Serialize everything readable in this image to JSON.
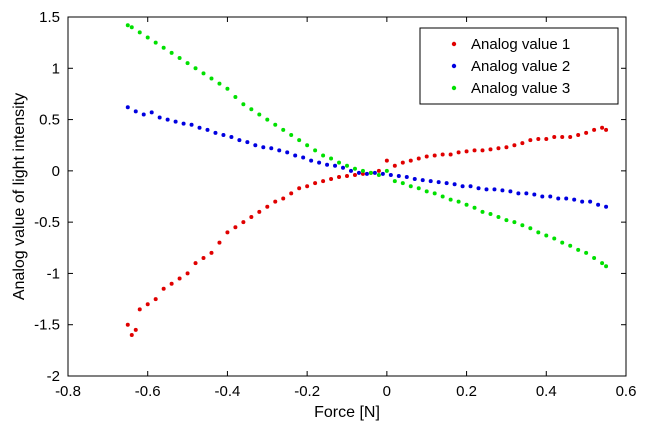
{
  "chart_data": {
    "type": "scatter",
    "title": "",
    "xlabel": "Force [N]",
    "ylabel": "Analog value of light intensity",
    "xlim": [
      -0.8,
      0.6
    ],
    "ylim": [
      -2,
      1.5
    ],
    "xticks": [
      -0.8,
      -0.6,
      -0.4,
      -0.2,
      0,
      0.2,
      0.4,
      0.6
    ],
    "yticks": [
      -2,
      -1.5,
      -1,
      -0.5,
      0,
      0.5,
      1,
      1.5
    ],
    "xtick_labels": [
      "-0.8",
      "-0.6",
      "-0.4",
      "-0.2",
      "0",
      "0.2",
      "0.4",
      "0.6"
    ],
    "ytick_labels": [
      "-2",
      "-1.5",
      "-1",
      "-0.5",
      "0",
      "0.5",
      "1",
      "1.5"
    ],
    "grid": false,
    "legend_position": "top-right",
    "series": [
      {
        "name": "Analog value 1",
        "color": "#e00000",
        "x": [
          -0.65,
          -0.64,
          -0.63,
          -0.62,
          -0.6,
          -0.58,
          -0.56,
          -0.54,
          -0.52,
          -0.5,
          -0.48,
          -0.46,
          -0.44,
          -0.42,
          -0.4,
          -0.38,
          -0.36,
          -0.34,
          -0.32,
          -0.3,
          -0.28,
          -0.26,
          -0.24,
          -0.22,
          -0.2,
          -0.18,
          -0.16,
          -0.14,
          -0.12,
          -0.1,
          -0.08,
          -0.06,
          -0.04,
          -0.02,
          0,
          0.02,
          0.04,
          0.06,
          0.08,
          0.1,
          0.12,
          0.14,
          0.16,
          0.18,
          0.2,
          0.22,
          0.24,
          0.26,
          0.28,
          0.3,
          0.32,
          0.34,
          0.36,
          0.38,
          0.4,
          0.42,
          0.44,
          0.46,
          0.48,
          0.5,
          0.52,
          0.54,
          0.55
        ],
        "y": [
          -1.5,
          -1.6,
          -1.55,
          -1.35,
          -1.3,
          -1.25,
          -1.15,
          -1.1,
          -1.05,
          -1.0,
          -0.9,
          -0.85,
          -0.8,
          -0.7,
          -0.6,
          -0.55,
          -0.5,
          -0.45,
          -0.4,
          -0.35,
          -0.3,
          -0.27,
          -0.22,
          -0.17,
          -0.15,
          -0.12,
          -0.1,
          -0.08,
          -0.06,
          -0.05,
          -0.04,
          -0.03,
          -0.02,
          0.0,
          0.1,
          0.05,
          0.08,
          0.1,
          0.12,
          0.14,
          0.15,
          0.16,
          0.16,
          0.18,
          0.19,
          0.2,
          0.2,
          0.21,
          0.22,
          0.23,
          0.25,
          0.27,
          0.3,
          0.31,
          0.31,
          0.33,
          0.33,
          0.33,
          0.35,
          0.37,
          0.4,
          0.42,
          0.4
        ]
      },
      {
        "name": "Analog value 2",
        "color": "#0000e0",
        "x": [
          -0.65,
          -0.63,
          -0.61,
          -0.59,
          -0.57,
          -0.55,
          -0.53,
          -0.51,
          -0.49,
          -0.47,
          -0.45,
          -0.43,
          -0.41,
          -0.39,
          -0.37,
          -0.35,
          -0.33,
          -0.31,
          -0.29,
          -0.27,
          -0.25,
          -0.23,
          -0.21,
          -0.19,
          -0.17,
          -0.15,
          -0.13,
          -0.11,
          -0.09,
          -0.07,
          -0.05,
          -0.03,
          -0.01,
          0.01,
          0.03,
          0.05,
          0.07,
          0.09,
          0.11,
          0.13,
          0.15,
          0.17,
          0.19,
          0.21,
          0.23,
          0.25,
          0.27,
          0.29,
          0.31,
          0.33,
          0.35,
          0.37,
          0.39,
          0.41,
          0.43,
          0.45,
          0.47,
          0.49,
          0.51,
          0.53,
          0.55
        ],
        "y": [
          0.62,
          0.58,
          0.55,
          0.57,
          0.52,
          0.5,
          0.48,
          0.46,
          0.45,
          0.42,
          0.4,
          0.37,
          0.35,
          0.33,
          0.3,
          0.28,
          0.25,
          0.23,
          0.22,
          0.2,
          0.18,
          0.15,
          0.13,
          0.1,
          0.08,
          0.06,
          0.05,
          0.03,
          0.0,
          -0.02,
          -0.03,
          -0.02,
          -0.03,
          -0.04,
          -0.05,
          -0.06,
          -0.08,
          -0.09,
          -0.1,
          -0.11,
          -0.12,
          -0.13,
          -0.15,
          -0.15,
          -0.17,
          -0.18,
          -0.18,
          -0.19,
          -0.2,
          -0.22,
          -0.22,
          -0.23,
          -0.25,
          -0.25,
          -0.27,
          -0.27,
          -0.28,
          -0.3,
          -0.3,
          -0.33,
          -0.35
        ]
      },
      {
        "name": "Analog value 3",
        "color": "#00e000",
        "x": [
          -0.65,
          -0.64,
          -0.62,
          -0.6,
          -0.58,
          -0.56,
          -0.54,
          -0.52,
          -0.5,
          -0.48,
          -0.46,
          -0.44,
          -0.42,
          -0.4,
          -0.38,
          -0.36,
          -0.34,
          -0.32,
          -0.3,
          -0.28,
          -0.26,
          -0.24,
          -0.22,
          -0.2,
          -0.18,
          -0.16,
          -0.14,
          -0.12,
          -0.1,
          -0.08,
          -0.06,
          -0.04,
          -0.02,
          0,
          0.02,
          0.04,
          0.06,
          0.08,
          0.1,
          0.12,
          0.14,
          0.16,
          0.18,
          0.2,
          0.22,
          0.24,
          0.26,
          0.28,
          0.3,
          0.32,
          0.34,
          0.36,
          0.38,
          0.4,
          0.42,
          0.44,
          0.46,
          0.48,
          0.5,
          0.52,
          0.54,
          0.55
        ],
        "y": [
          1.42,
          1.4,
          1.35,
          1.3,
          1.25,
          1.2,
          1.15,
          1.1,
          1.05,
          1.0,
          0.95,
          0.9,
          0.85,
          0.8,
          0.72,
          0.65,
          0.6,
          0.55,
          0.5,
          0.45,
          0.4,
          0.35,
          0.3,
          0.25,
          0.2,
          0.15,
          0.12,
          0.08,
          0.05,
          0.02,
          0.0,
          -0.02,
          -0.04,
          0.0,
          -0.1,
          -0.12,
          -0.15,
          -0.17,
          -0.2,
          -0.22,
          -0.25,
          -0.28,
          -0.3,
          -0.33,
          -0.36,
          -0.4,
          -0.42,
          -0.45,
          -0.48,
          -0.5,
          -0.53,
          -0.56,
          -0.6,
          -0.63,
          -0.66,
          -0.7,
          -0.73,
          -0.77,
          -0.8,
          -0.85,
          -0.9,
          -0.93
        ]
      }
    ]
  }
}
